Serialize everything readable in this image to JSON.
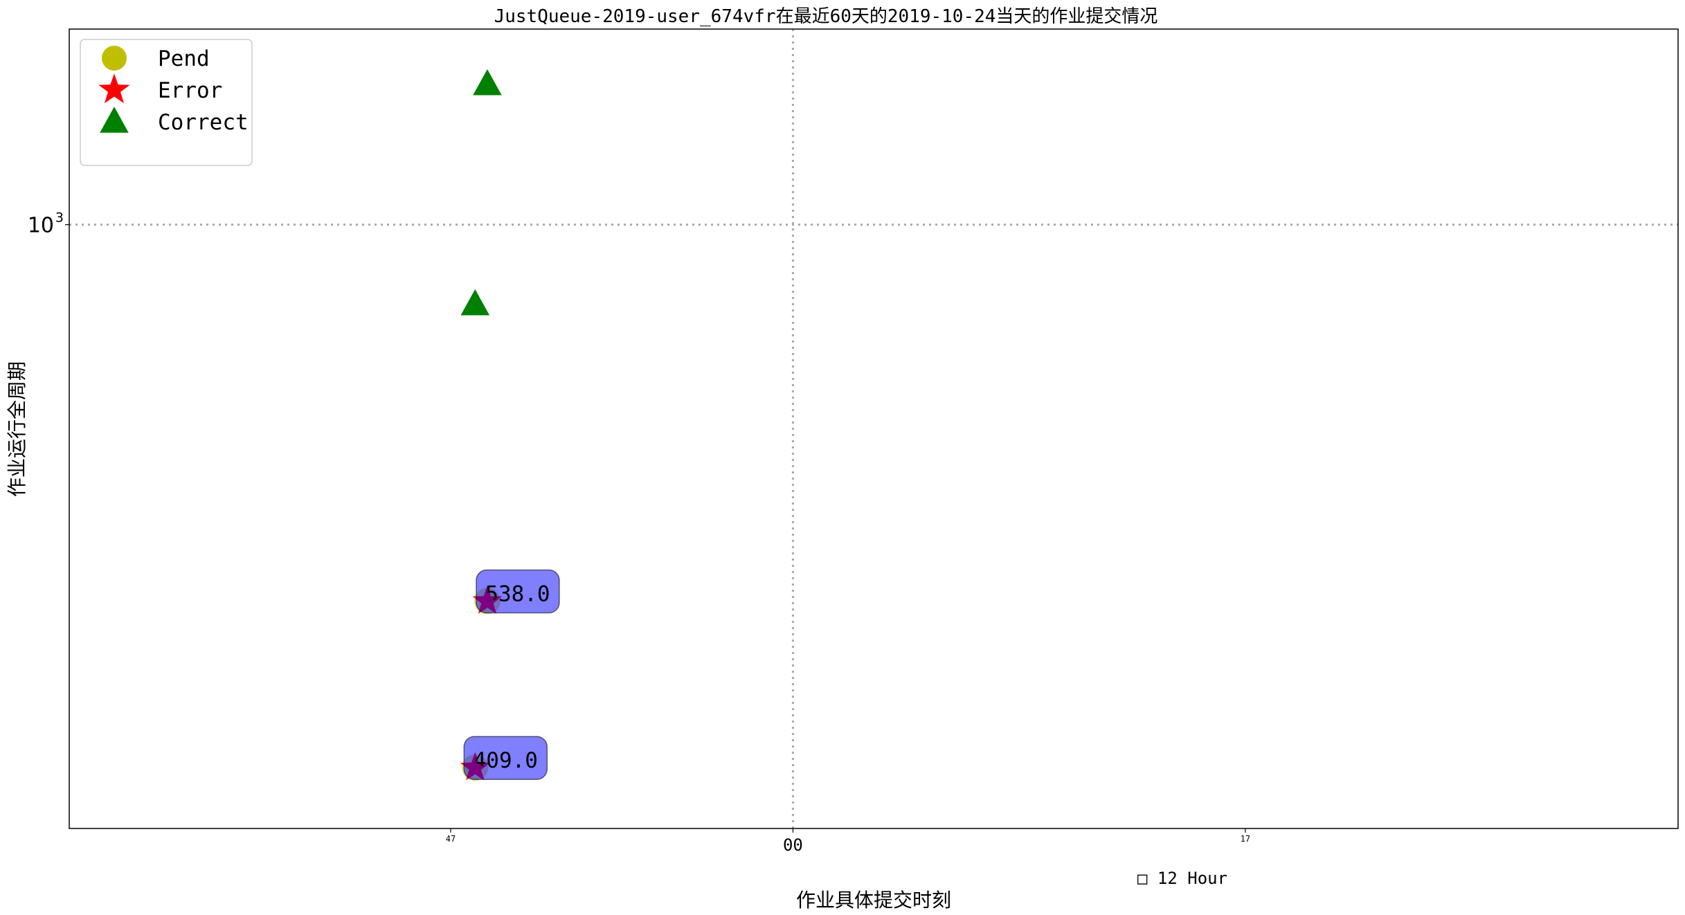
{
  "chart_data": {
    "type": "scatter",
    "title": "JustQueue-2019-user_674vfr在最近60天的2019-10-24当天的作业提交情况",
    "xlabel": "作业具体提交时刻",
    "ylabel": "作业运行全周期",
    "x_unit_note": "□ 12 Hour",
    "y_scale": "log",
    "ylim": [
      370,
      1380
    ],
    "xlim": [
      -29.6,
      36.2
    ],
    "x_ticks": [
      {
        "value": -14,
        "label": "47",
        "size": "small"
      },
      {
        "value": 0,
        "label": "00",
        "size": "large"
      },
      {
        "value": 18.5,
        "label": "17",
        "size": "small"
      }
    ],
    "y_ticks": [
      {
        "value": 1000,
        "label_base": "10",
        "label_exp": "3"
      }
    ],
    "grid": {
      "style": "dotted",
      "x_at": [
        0
      ],
      "y_at": [
        1000
      ]
    },
    "legend": {
      "placement": "top-left",
      "entries": [
        {
          "label": "Pend",
          "marker": "circle",
          "color": "#bfbf00"
        },
        {
          "label": "Error",
          "marker": "star",
          "color": "#ff0000"
        },
        {
          "label": "Correct",
          "marker": "triangle",
          "color": "#008000"
        }
      ]
    },
    "series": [
      {
        "name": "Pend",
        "marker": "circle",
        "color": "#bfbf00",
        "points": [
          {
            "x": -12.5,
            "y": 538
          },
          {
            "x": -13.0,
            "y": 409
          }
        ]
      },
      {
        "name": "Error",
        "marker": "star",
        "color": "#ff0000",
        "points": [
          {
            "x": -12.5,
            "y": 538
          },
          {
            "x": -13.0,
            "y": 409
          }
        ]
      },
      {
        "name": "Correct",
        "marker": "triangle",
        "color": "#008000",
        "points": [
          {
            "x": -12.5,
            "y": 1260
          },
          {
            "x": -13.0,
            "y": 877
          }
        ]
      }
    ],
    "annotations": [
      {
        "text": "538.0",
        "x": -12.5,
        "y": 538
      },
      {
        "text": "409.0",
        "x": -13.0,
        "y": 409
      }
    ],
    "annotation_box_color": "#0000ff",
    "overlay_marker_color": "#800080"
  }
}
